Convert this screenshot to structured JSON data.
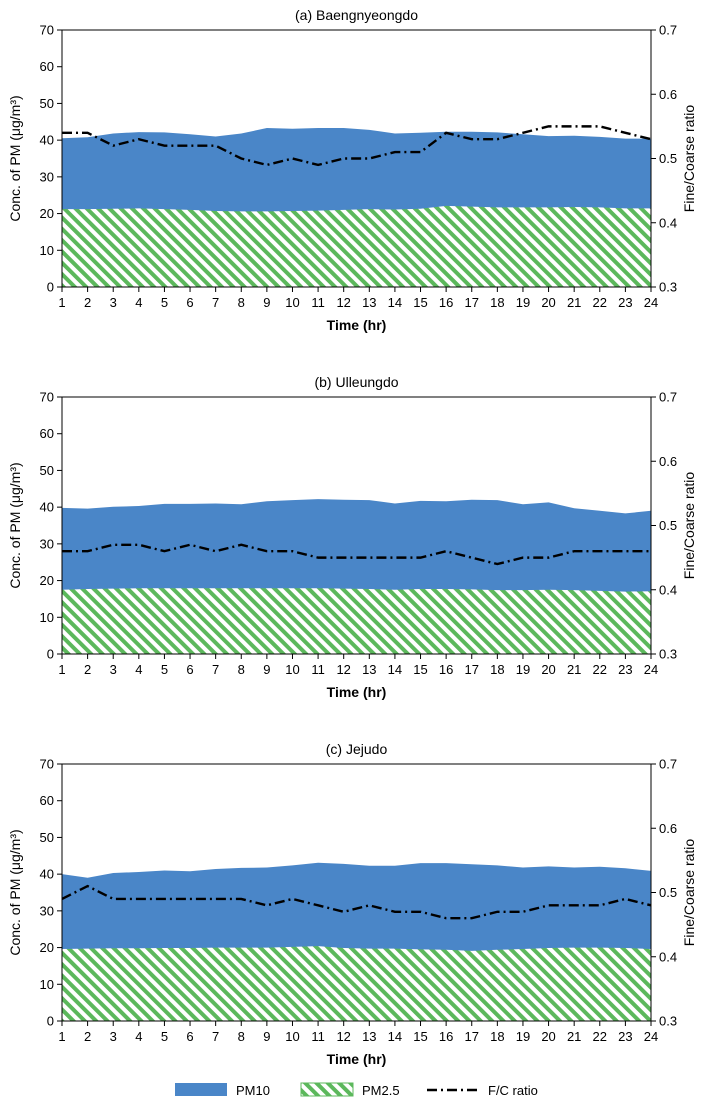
{
  "colors": {
    "pm10": "#4a86c8",
    "pm25_stripe": "#5cb85c",
    "ratio_line": "#000000"
  },
  "legend": {
    "position": "bottom",
    "items": [
      "PM10",
      "PM2.5",
      "F/C ratio"
    ]
  },
  "chart_data": [
    {
      "type": "area",
      "title": "(a) Baengnyeongdo",
      "xlabel": "Time (hr)",
      "ylabel": "Conc. of PM (μg/m³)",
      "y2label": "Fine/Coarse ratio",
      "ylim": [
        0,
        70
      ],
      "yticks": [
        "0",
        "10",
        "20",
        "30",
        "40",
        "50",
        "60",
        "70"
      ],
      "y2lim": [
        0.3,
        0.7
      ],
      "y2ticks": [
        "0.3",
        "0.4",
        "0.5",
        "0.6",
        "0.7"
      ],
      "grid": false,
      "x": [
        "1",
        "2",
        "3",
        "4",
        "5",
        "6",
        "7",
        "8",
        "9",
        "10",
        "11",
        "12",
        "13",
        "14",
        "15",
        "16",
        "17",
        "18",
        "19",
        "20",
        "21",
        "22",
        "23",
        "24"
      ],
      "series": [
        {
          "name": "PM10",
          "values": [
            40.5,
            40.8,
            41.8,
            42.2,
            42.1,
            41.6,
            41.0,
            41.8,
            43.3,
            43.1,
            43.3,
            43.3,
            42.8,
            41.8,
            42.0,
            42.3,
            42.3,
            42.1,
            41.6,
            41.1,
            41.2,
            40.9,
            40.4,
            40.4
          ]
        },
        {
          "name": "PM2.5",
          "values": [
            21.2,
            21.2,
            21.3,
            21.4,
            21.2,
            21.0,
            20.7,
            20.6,
            20.6,
            20.7,
            20.8,
            21.0,
            21.2,
            21.1,
            21.3,
            22.1,
            21.9,
            21.7,
            21.7,
            21.7,
            21.8,
            21.7,
            21.4,
            21.4
          ]
        },
        {
          "name": "F/C ratio",
          "axis": "right",
          "values": [
            0.54,
            0.54,
            0.52,
            0.53,
            0.52,
            0.52,
            0.52,
            0.5,
            0.49,
            0.5,
            0.49,
            0.5,
            0.5,
            0.51,
            0.51,
            0.54,
            0.53,
            0.53,
            0.54,
            0.55,
            0.55,
            0.55,
            0.54,
            0.53
          ]
        }
      ]
    },
    {
      "type": "area",
      "title": "(b) Ulleungdo",
      "xlabel": "Time (hr)",
      "ylabel": "Conc. of PM (μg/m³)",
      "y2label": "Fine/Coarse ratio",
      "ylim": [
        0,
        70
      ],
      "yticks": [
        "0",
        "10",
        "20",
        "30",
        "40",
        "50",
        "60",
        "70"
      ],
      "y2lim": [
        0.3,
        0.7
      ],
      "y2ticks": [
        "0.3",
        "0.4",
        "0.5",
        "0.6",
        "0.7"
      ],
      "grid": false,
      "x": [
        "1",
        "2",
        "3",
        "4",
        "5",
        "6",
        "7",
        "8",
        "9",
        "10",
        "11",
        "12",
        "13",
        "14",
        "15",
        "16",
        "17",
        "18",
        "19",
        "20",
        "21",
        "22",
        "23",
        "24"
      ],
      "series": [
        {
          "name": "PM10",
          "values": [
            39.8,
            39.6,
            40.1,
            40.3,
            40.9,
            40.9,
            41.0,
            40.8,
            41.6,
            41.9,
            42.2,
            42.0,
            41.9,
            41.0,
            41.7,
            41.6,
            42.0,
            41.9,
            40.8,
            41.3,
            39.7,
            39.0,
            38.3,
            39.0
          ]
        },
        {
          "name": "PM2.5",
          "values": [
            17.5,
            17.7,
            17.8,
            17.9,
            17.9,
            17.9,
            17.9,
            17.9,
            17.9,
            17.9,
            17.9,
            17.8,
            17.7,
            17.5,
            17.7,
            17.7,
            17.6,
            17.4,
            17.4,
            17.5,
            17.4,
            17.2,
            17.0,
            17.1
          ]
        },
        {
          "name": "F/C ratio",
          "axis": "right",
          "values": [
            0.46,
            0.46,
            0.47,
            0.47,
            0.46,
            0.47,
            0.46,
            0.47,
            0.46,
            0.46,
            0.45,
            0.45,
            0.45,
            0.45,
            0.45,
            0.46,
            0.45,
            0.44,
            0.45,
            0.45,
            0.46,
            0.46,
            0.46,
            0.46
          ]
        }
      ]
    },
    {
      "type": "area",
      "title": "(c) Jejudo",
      "xlabel": "Time (hr)",
      "ylabel": "Conc. of PM (μg/m³)",
      "y2label": "Fine/Coarse ratio",
      "ylim": [
        0,
        70
      ],
      "yticks": [
        "0",
        "10",
        "20",
        "30",
        "40",
        "50",
        "60",
        "70"
      ],
      "y2lim": [
        0.3,
        0.7
      ],
      "y2ticks": [
        "0.3",
        "0.4",
        "0.5",
        "0.6",
        "0.7"
      ],
      "grid": false,
      "x": [
        "1",
        "2",
        "3",
        "4",
        "5",
        "6",
        "7",
        "8",
        "9",
        "10",
        "11",
        "12",
        "13",
        "14",
        "15",
        "16",
        "17",
        "18",
        "19",
        "20",
        "21",
        "22",
        "23",
        "24"
      ],
      "series": [
        {
          "name": "PM10",
          "values": [
            40.0,
            39.0,
            40.3,
            40.6,
            41.0,
            40.8,
            41.4,
            41.7,
            41.8,
            42.4,
            43.1,
            42.8,
            42.3,
            42.3,
            43.0,
            43.0,
            42.7,
            42.4,
            41.8,
            42.1,
            41.8,
            42.0,
            41.6,
            40.9
          ]
        },
        {
          "name": "PM2.5",
          "values": [
            19.6,
            19.7,
            19.8,
            19.8,
            19.9,
            19.9,
            20.0,
            20.0,
            20.0,
            20.2,
            20.4,
            19.9,
            19.7,
            19.7,
            19.5,
            19.4,
            19.1,
            19.4,
            19.6,
            19.9,
            20.0,
            20.0,
            19.9,
            19.6
          ]
        },
        {
          "name": "F/C ratio",
          "axis": "right",
          "values": [
            0.49,
            0.51,
            0.49,
            0.49,
            0.49,
            0.49,
            0.49,
            0.49,
            0.48,
            0.49,
            0.48,
            0.47,
            0.48,
            0.47,
            0.47,
            0.46,
            0.46,
            0.47,
            0.47,
            0.48,
            0.48,
            0.48,
            0.49,
            0.48
          ]
        }
      ]
    }
  ]
}
